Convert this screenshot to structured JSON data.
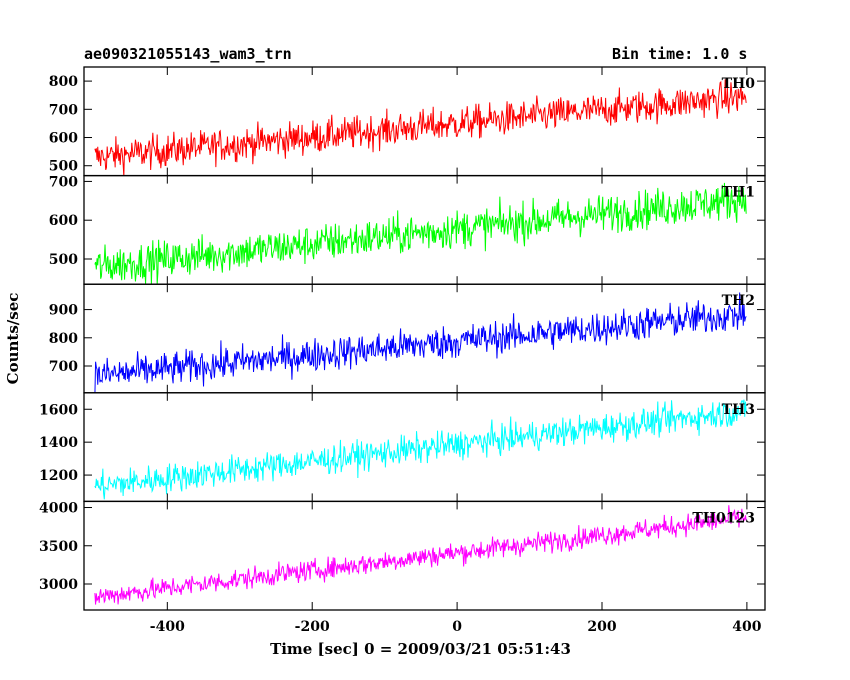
{
  "header": {
    "title": "ae090321055143_wam3_trn",
    "bin_time": "Bin time: 1.0 s"
  },
  "chart_data": {
    "type": "line",
    "xlabel": "Time [sec] 0 = 2009/03/21 05:51:43",
    "ylabel": "Counts/sec",
    "xlim": [
      -515,
      425
    ],
    "x_start": -500,
    "x_end": 399,
    "x_step": 1,
    "x_ticks": [
      -400,
      -200,
      0,
      200,
      400
    ],
    "grid": false,
    "panels": [
      {
        "name": "TH0",
        "color": "#ff0000",
        "ylim": [
          465,
          850
        ],
        "y_ticks": [
          500,
          600,
          700,
          800
        ],
        "trend_start": 530,
        "trend_end": 745,
        "noise": 30
      },
      {
        "name": "TH1",
        "color": "#00ff00",
        "ylim": [
          435,
          715
        ],
        "y_ticks": [
          500,
          600,
          700
        ],
        "trend_start": 480,
        "trend_end": 655,
        "noise": 25
      },
      {
        "name": "TH2",
        "color": "#0000ff",
        "ylim": [
          605,
          990
        ],
        "y_ticks": [
          700,
          800,
          900
        ],
        "trend_start": 665,
        "trend_end": 885,
        "noise": 30
      },
      {
        "name": "TH3",
        "color": "#00ffff",
        "ylim": [
          1040,
          1700
        ],
        "y_ticks": [
          1200,
          1400,
          1600
        ],
        "trend_start": 1130,
        "trend_end": 1590,
        "noise": 45
      },
      {
        "name": "TH0123",
        "color": "#ff00ff",
        "ylim": [
          2660,
          4080
        ],
        "y_ticks": [
          3000,
          3500,
          4000
        ],
        "trend_start": 2830,
        "trend_end": 3870,
        "noise": 70
      }
    ]
  }
}
